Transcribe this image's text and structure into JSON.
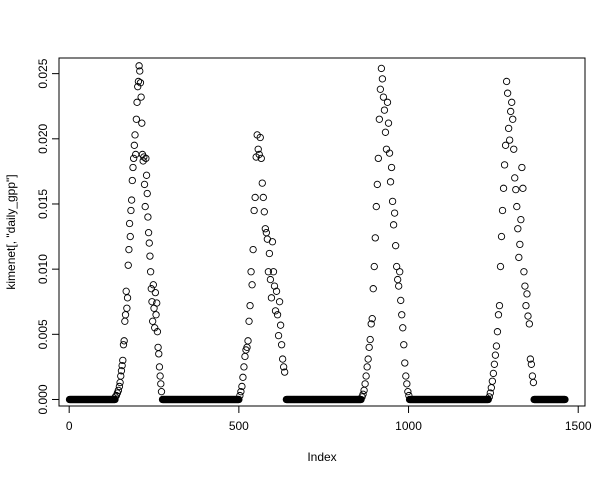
{
  "chart_data": {
    "type": "scatter",
    "title": "",
    "xlabel": "Index",
    "ylabel": "kimenet[, \"daily_gpp\"]",
    "xlim": [
      -30,
      1520
    ],
    "ylim": [
      -0.0005,
      0.0262
    ],
    "x_ticks": [
      0,
      500,
      1000,
      1500
    ],
    "x_tick_labels": [
      "0",
      "500",
      "1000",
      "1500"
    ],
    "y_ticks": [
      0,
      0.005,
      0.01,
      0.015,
      0.02,
      0.025
    ],
    "y_tick_labels": [
      "0.000",
      "0.005",
      "0.010",
      "0.015",
      "0.020",
      "0.025"
    ],
    "grid": false,
    "marker": "open-circle",
    "color": "#000000",
    "zero_runs": [
      [
        1,
        135
      ],
      [
        275,
        500
      ],
      [
        640,
        860
      ],
      [
        1003,
        1235
      ],
      [
        1370,
        1461
      ]
    ],
    "x": [
      136,
      139,
      142,
      145,
      148,
      150,
      152,
      154,
      156,
      158,
      160,
      162,
      164,
      166,
      168,
      170,
      172,
      174,
      176,
      178,
      180,
      182,
      184,
      186,
      188,
      190,
      192,
      194,
      196,
      198,
      200,
      202,
      204,
      206,
      208,
      210,
      212,
      214,
      216,
      218,
      220,
      222,
      224,
      226,
      228,
      230,
      232,
      234,
      236,
      238,
      240,
      242,
      244,
      246,
      248,
      250,
      252,
      254,
      256,
      258,
      260,
      262,
      264,
      266,
      268,
      270,
      272,
      503,
      506,
      509,
      512,
      515,
      518,
      521,
      524,
      527,
      530,
      533,
      536,
      539,
      542,
      545,
      548,
      551,
      554,
      557,
      560,
      563,
      566,
      569,
      572,
      575,
      578,
      581,
      584,
      587,
      590,
      593,
      596,
      599,
      602,
      605,
      608,
      611,
      614,
      617,
      620,
      623,
      626,
      629,
      632,
      635,
      863,
      866,
      869,
      872,
      875,
      878,
      881,
      884,
      887,
      890,
      893,
      896,
      899,
      902,
      905,
      908,
      911,
      914,
      917,
      920,
      923,
      926,
      929,
      932,
      935,
      938,
      941,
      944,
      947,
      950,
      953,
      956,
      959,
      962,
      965,
      968,
      971,
      974,
      977,
      980,
      983,
      986,
      989,
      992,
      995,
      998,
      1001,
      1238,
      1241,
      1244,
      1247,
      1250,
      1253,
      1256,
      1259,
      1262,
      1265,
      1268,
      1271,
      1274,
      1277,
      1280,
      1283,
      1286,
      1289,
      1292,
      1295,
      1298,
      1301,
      1304,
      1307,
      1310,
      1313,
      1316,
      1319,
      1322,
      1325,
      1328,
      1331,
      1334,
      1337,
      1340,
      1343,
      1346,
      1349,
      1352,
      1356,
      1359,
      1362,
      1365,
      1368
    ],
    "y": [
      0.0002,
      0.0003,
      0.0005,
      0.0007,
      0.001,
      0.0013,
      0.0018,
      0.0022,
      0.0026,
      0.003,
      0.0042,
      0.0045,
      0.006,
      0.0065,
      0.0083,
      0.007,
      0.0078,
      0.0103,
      0.0115,
      0.0135,
      0.0125,
      0.0145,
      0.0153,
      0.0168,
      0.0178,
      0.0185,
      0.0195,
      0.0203,
      0.0188,
      0.0215,
      0.0228,
      0.024,
      0.0244,
      0.0256,
      0.0252,
      0.0243,
      0.0232,
      0.0212,
      0.0188,
      0.0183,
      0.0186,
      0.0165,
      0.0148,
      0.0185,
      0.0172,
      0.0158,
      0.014,
      0.0128,
      0.012,
      0.011,
      0.0098,
      0.0085,
      0.0075,
      0.006,
      0.0088,
      0.007,
      0.0055,
      0.0082,
      0.0065,
      0.0074,
      0.0052,
      0.004,
      0.0035,
      0.0025,
      0.0018,
      0.0012,
      0.0006,
      0.0003,
      0.0006,
      0.001,
      0.0017,
      0.0025,
      0.0033,
      0.0038,
      0.004,
      0.0045,
      0.006,
      0.0072,
      0.0098,
      0.0088,
      0.0115,
      0.0145,
      0.0155,
      0.0186,
      0.0203,
      0.0192,
      0.0188,
      0.0201,
      0.0185,
      0.0166,
      0.0155,
      0.0144,
      0.0131,
      0.0128,
      0.0123,
      0.0098,
      0.0112,
      0.0092,
      0.0078,
      0.0121,
      0.0098,
      0.0087,
      0.0068,
      0.0083,
      0.0065,
      0.0049,
      0.0075,
      0.0057,
      0.0042,
      0.0031,
      0.0025,
      0.0021,
      0.0002,
      0.0004,
      0.0007,
      0.0012,
      0.0018,
      0.0025,
      0.0031,
      0.004,
      0.0046,
      0.0058,
      0.0062,
      0.0085,
      0.0102,
      0.0124,
      0.0148,
      0.0165,
      0.0185,
      0.0215,
      0.0238,
      0.0254,
      0.0246,
      0.0232,
      0.0222,
      0.0205,
      0.0192,
      0.0228,
      0.0212,
      0.0189,
      0.0167,
      0.0178,
      0.0152,
      0.0134,
      0.0143,
      0.0118,
      0.0102,
      0.0092,
      0.0087,
      0.0098,
      0.0076,
      0.0065,
      0.0055,
      0.0042,
      0.0028,
      0.0018,
      0.0012,
      0.0006,
      0.0003,
      0.0002,
      0.0005,
      0.0009,
      0.0014,
      0.002,
      0.0027,
      0.0034,
      0.0041,
      0.0052,
      0.0065,
      0.0072,
      0.0102,
      0.0125,
      0.0145,
      0.0162,
      0.018,
      0.0195,
      0.0244,
      0.0235,
      0.0208,
      0.0199,
      0.0221,
      0.0228,
      0.0215,
      0.0192,
      0.017,
      0.0161,
      0.0148,
      0.0131,
      0.0109,
      0.0119,
      0.0138,
      0.0178,
      0.0162,
      0.0098,
      0.0087,
      0.0072,
      0.0081,
      0.0064,
      0.0058,
      0.0031,
      0.0027,
      0.0018,
      0.0013
    ]
  }
}
